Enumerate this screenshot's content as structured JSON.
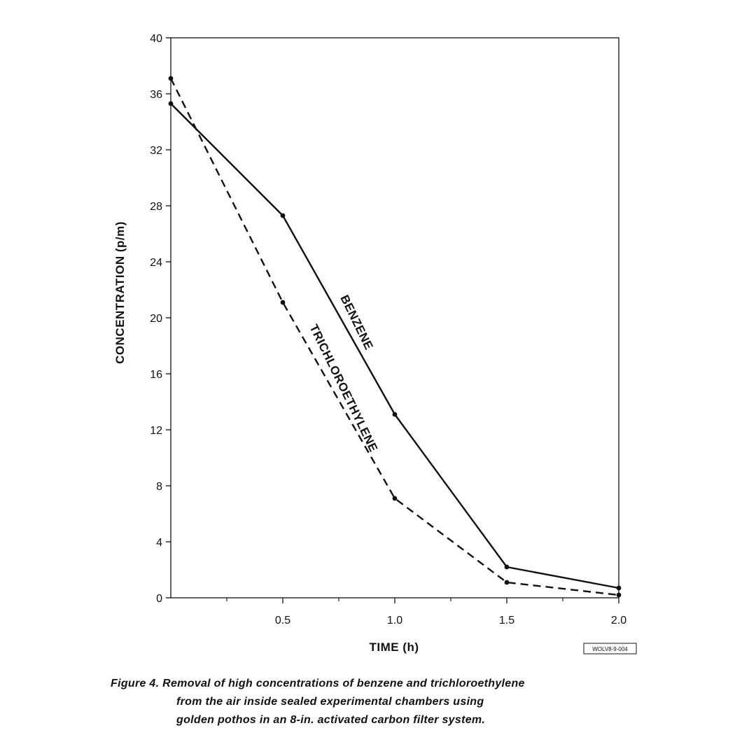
{
  "chart_data": {
    "type": "line",
    "xlabel": "TIME (h)",
    "ylabel": "CONCENTRATION (p/m)",
    "xlim": [
      0,
      2.0
    ],
    "ylim": [
      0,
      40
    ],
    "xticks": [
      0.5,
      1.0,
      1.5,
      2.0
    ],
    "xtick_labels": [
      "0.5",
      "1.0",
      "1.5",
      "2.0"
    ],
    "xminor_ticks": [
      0.25,
      0.75,
      1.25,
      1.75
    ],
    "yticks": [
      0,
      4,
      8,
      12,
      16,
      20,
      24,
      28,
      32,
      36,
      40
    ],
    "ytick_labels": [
      "0",
      "4",
      "8",
      "12",
      "16",
      "20",
      "24",
      "28",
      "32",
      "36",
      "40"
    ],
    "grid": false,
    "series": [
      {
        "name": "BENZENE",
        "style": "solid",
        "x": [
          0,
          0.5,
          1.0,
          1.5,
          2.0
        ],
        "y": [
          35.3,
          27.3,
          13.1,
          2.2,
          0.7
        ]
      },
      {
        "name": "TRICHLOROETHYLENE",
        "style": "dashed",
        "x": [
          0,
          0.5,
          1.0,
          1.5,
          2.0
        ],
        "y": [
          37.1,
          21.1,
          7.1,
          1.1,
          0.2
        ]
      }
    ]
  },
  "figure_code": "WOLV8-9-004",
  "caption": {
    "line1": "Figure 4. Removal of high concentrations of benzene and trichloroethylene",
    "line2": "from the air inside sealed experimental chambers using",
    "line3": "golden pothos in an 8-in. activated carbon filter system."
  },
  "colors": {
    "ink": "#111111",
    "background": "#ffffff"
  }
}
